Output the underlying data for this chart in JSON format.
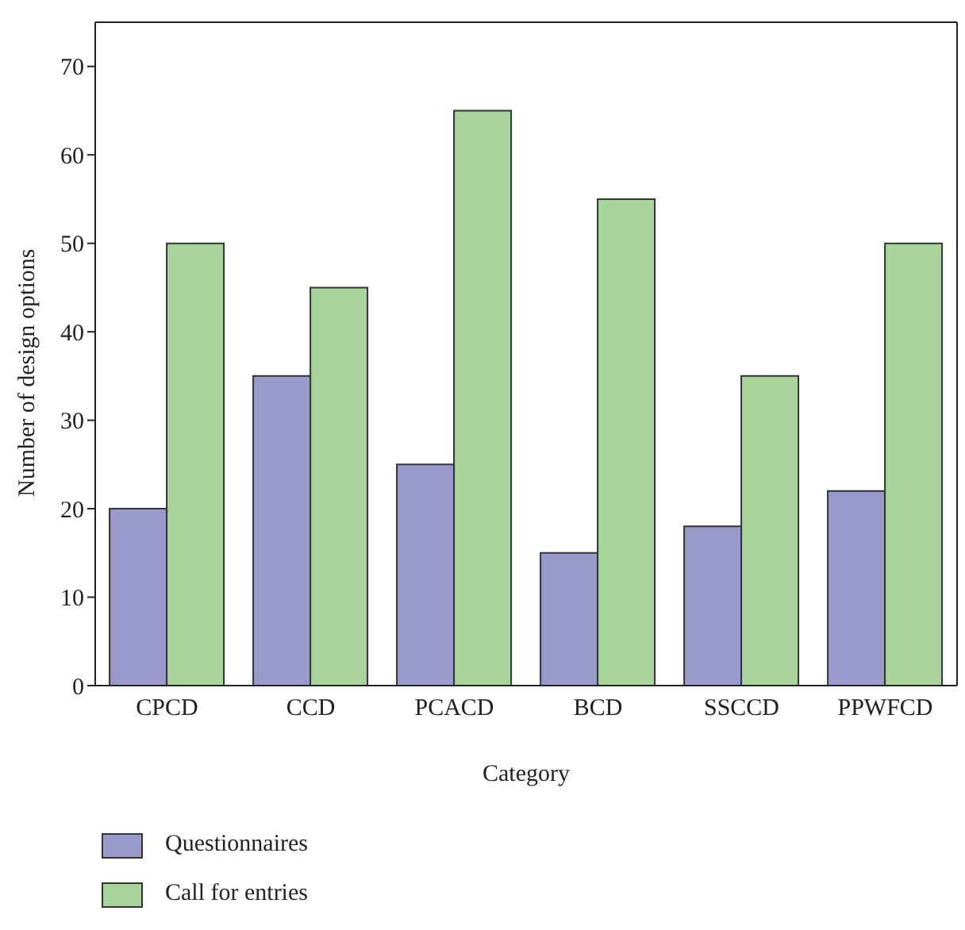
{
  "chart_data": {
    "type": "bar",
    "xlabel": "Category",
    "ylabel": "Number of design options",
    "categories": [
      "CPCD",
      "CCD",
      "PCACD",
      "BCD",
      "SSCCD",
      "PPWFCD"
    ],
    "series": [
      {
        "name": "Questionnaires",
        "color": "#9999cc",
        "values": [
          20,
          35,
          25,
          15,
          18,
          22
        ]
      },
      {
        "name": "Call for entries",
        "color": "#a8d49a",
        "values": [
          50,
          45,
          65,
          55,
          35,
          50
        ]
      }
    ],
    "ylim": [
      0,
      75
    ],
    "yticks": [
      0,
      10,
      20,
      30,
      40,
      50,
      60,
      70
    ],
    "grid": false,
    "legend": "bottom left"
  }
}
